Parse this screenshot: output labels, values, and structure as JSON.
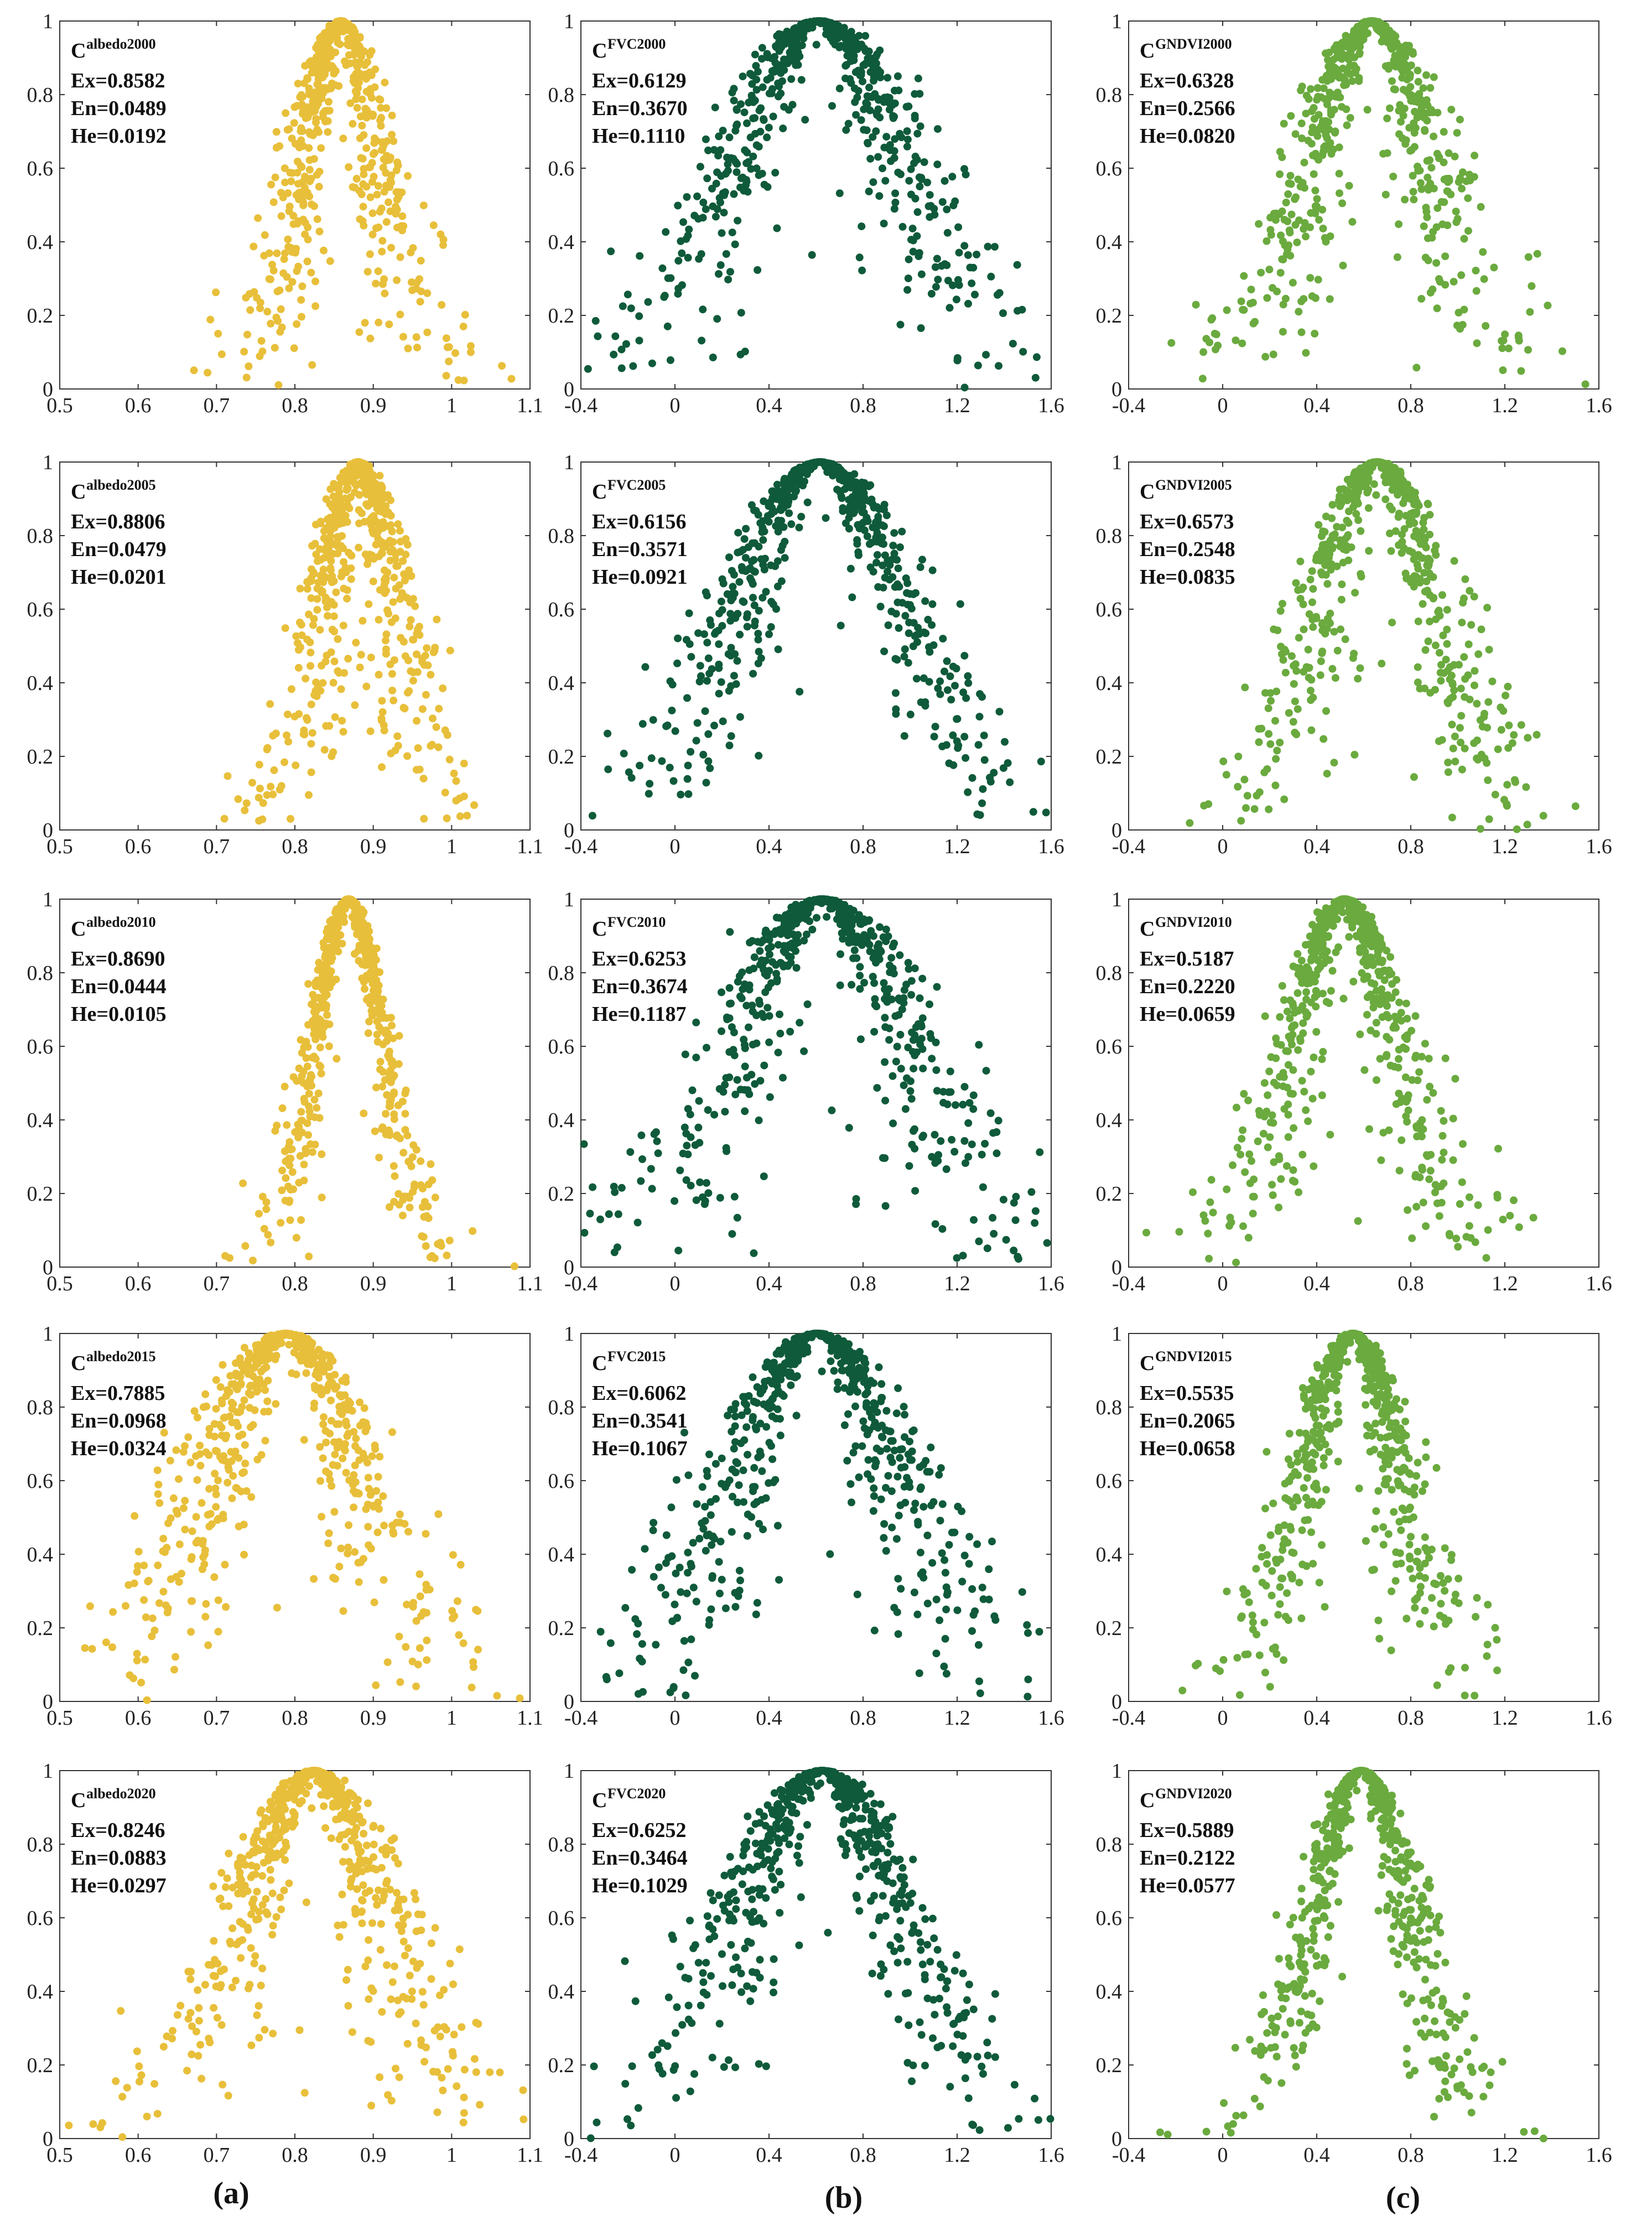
{
  "chart_data": [
    {
      "type": "scatter",
      "column": "a",
      "symbol": "C",
      "superscript": "albedo2000",
      "ex_label": "Ex=0.8582",
      "en_label": "En=0.0489",
      "he_label": "He=0.0192",
      "Ex": 0.8582,
      "En": 0.0489,
      "He": 0.0192,
      "xlim": [
        0.5,
        1.1
      ],
      "xticks": [
        "0.5",
        "0.6",
        "0.7",
        "0.8",
        "0.9",
        "1",
        "1.1"
      ],
      "ylim": [
        0,
        1
      ],
      "yticks": [
        "0",
        "0.2",
        "0.4",
        "0.6",
        "0.8",
        "1"
      ],
      "color": "#E8BF3A",
      "n_points": 650
    },
    {
      "type": "scatter",
      "column": "b",
      "symbol": "C",
      "superscript": "FVC2000",
      "ex_label": "Ex=0.6129",
      "en_label": "En=0.3670",
      "he_label": "He=0.1110",
      "Ex": 0.6129,
      "En": 0.367,
      "He": 0.111,
      "xlim": [
        -0.4,
        1.6
      ],
      "xticks": [
        "-0.4",
        "0",
        "0.4",
        "0.8",
        "1.2",
        "1.6"
      ],
      "ylim": [
        0,
        1
      ],
      "yticks": [
        "0",
        "0.2",
        "0.4",
        "0.6",
        "0.8",
        "1"
      ],
      "color": "#0F5A3A",
      "n_points": 650
    },
    {
      "type": "scatter",
      "column": "c",
      "symbol": "C",
      "superscript": "GNDVI2000",
      "ex_label": "Ex=0.6328",
      "en_label": "En=0.2566",
      "he_label": "He=0.0820",
      "Ex": 0.6328,
      "En": 0.2566,
      "He": 0.082,
      "xlim": [
        -0.4,
        1.6
      ],
      "xticks": [
        "-0.4",
        "0",
        "0.4",
        "0.8",
        "1.2",
        "1.6"
      ],
      "ylim": [
        0,
        1
      ],
      "yticks": [
        "0",
        "0.2",
        "0.4",
        "0.6",
        "0.8",
        "1"
      ],
      "color": "#6AAA3E",
      "n_points": 650
    },
    {
      "type": "scatter",
      "column": "a",
      "symbol": "C",
      "superscript": "albedo2005",
      "ex_label": "Ex=0.8806",
      "en_label": "En=0.0479",
      "he_label": "He=0.0201",
      "Ex": 0.8806,
      "En": 0.0479,
      "He": 0.0201,
      "xlim": [
        0.5,
        1.1
      ],
      "xticks": [
        "0.5",
        "0.6",
        "0.7",
        "0.8",
        "0.9",
        "1",
        "1.1"
      ],
      "ylim": [
        0,
        1
      ],
      "yticks": [
        "0",
        "0.2",
        "0.4",
        "0.6",
        "0.8",
        "1"
      ],
      "color": "#E8BF3A",
      "n_points": 650
    },
    {
      "type": "scatter",
      "column": "b",
      "symbol": "C",
      "superscript": "FVC2005",
      "ex_label": "Ex=0.6156",
      "en_label": "En=0.3571",
      "he_label": "He=0.0921",
      "Ex": 0.6156,
      "En": 0.3571,
      "He": 0.0921,
      "xlim": [
        -0.4,
        1.6
      ],
      "xticks": [
        "-0.4",
        "0",
        "0.4",
        "0.8",
        "1.2",
        "1.6"
      ],
      "ylim": [
        0,
        1
      ],
      "yticks": [
        "0",
        "0.2",
        "0.4",
        "0.6",
        "0.8",
        "1"
      ],
      "color": "#0F5A3A",
      "n_points": 650
    },
    {
      "type": "scatter",
      "column": "c",
      "symbol": "C",
      "superscript": "GNDVI2005",
      "ex_label": "Ex=0.6573",
      "en_label": "En=0.2548",
      "he_label": "He=0.0835",
      "Ex": 0.6573,
      "En": 0.2548,
      "He": 0.0835,
      "xlim": [
        -0.4,
        1.6
      ],
      "xticks": [
        "-0.4",
        "0",
        "0.4",
        "0.8",
        "1.2",
        "1.6"
      ],
      "ylim": [
        0,
        1
      ],
      "yticks": [
        "0",
        "0.2",
        "0.4",
        "0.6",
        "0.8",
        "1"
      ],
      "color": "#6AAA3E",
      "n_points": 650
    },
    {
      "type": "scatter",
      "column": "a",
      "symbol": "C",
      "superscript": "albedo2010",
      "ex_label": "Ex=0.8690",
      "en_label": "En=0.0444",
      "he_label": "He=0.0105",
      "Ex": 0.869,
      "En": 0.0444,
      "He": 0.0105,
      "xlim": [
        0.5,
        1.1
      ],
      "xticks": [
        "0.5",
        "0.6",
        "0.7",
        "0.8",
        "0.9",
        "1",
        "1.1"
      ],
      "ylim": [
        0,
        1
      ],
      "yticks": [
        "0",
        "0.2",
        "0.4",
        "0.6",
        "0.8",
        "1"
      ],
      "color": "#E8BF3A",
      "n_points": 650
    },
    {
      "type": "scatter",
      "column": "b",
      "symbol": "C",
      "superscript": "FVC2010",
      "ex_label": "Ex=0.6253",
      "en_label": "En=0.3674",
      "he_label": "He=0.1187",
      "Ex": 0.6253,
      "En": 0.3674,
      "He": 0.1187,
      "xlim": [
        -0.4,
        1.6
      ],
      "xticks": [
        "-0.4",
        "0",
        "0.4",
        "0.8",
        "1.2",
        "1.6"
      ],
      "ylim": [
        0,
        1
      ],
      "yticks": [
        "0",
        "0.2",
        "0.4",
        "0.6",
        "0.8",
        "1"
      ],
      "color": "#0F5A3A",
      "n_points": 650
    },
    {
      "type": "scatter",
      "column": "c",
      "symbol": "C",
      "superscript": "GNDVI2010",
      "ex_label": "Ex=0.5187",
      "en_label": "En=0.2220",
      "he_label": "He=0.0659",
      "Ex": 0.5187,
      "En": 0.222,
      "He": 0.0659,
      "xlim": [
        -0.4,
        1.6
      ],
      "xticks": [
        "-0.4",
        "0",
        "0.4",
        "0.8",
        "1.2",
        "1.6"
      ],
      "ylim": [
        0,
        1
      ],
      "yticks": [
        "0",
        "0.2",
        "0.4",
        "0.6",
        "0.8",
        "1"
      ],
      "color": "#6AAA3E",
      "n_points": 650
    },
    {
      "type": "scatter",
      "column": "a",
      "symbol": "C",
      "superscript": "albedo2015",
      "ex_label": "Ex=0.7885",
      "en_label": "En=0.0968",
      "he_label": "He=0.0324",
      "Ex": 0.7885,
      "En": 0.0968,
      "He": 0.0324,
      "xlim": [
        0.5,
        1.1
      ],
      "xticks": [
        "0.5",
        "0.6",
        "0.7",
        "0.8",
        "0.9",
        "1",
        "1.1"
      ],
      "ylim": [
        0,
        1
      ],
      "yticks": [
        "0",
        "0.2",
        "0.4",
        "0.6",
        "0.8",
        "1"
      ],
      "color": "#E8BF3A",
      "n_points": 650
    },
    {
      "type": "scatter",
      "column": "b",
      "symbol": "C",
      "superscript": "FVC2015",
      "ex_label": "Ex=0.6062",
      "en_label": "En=0.3541",
      "he_label": "He=0.1067",
      "Ex": 0.6062,
      "En": 0.3541,
      "He": 0.1067,
      "xlim": [
        -0.4,
        1.6
      ],
      "xticks": [
        "-0.4",
        "0",
        "0.4",
        "0.8",
        "1.2",
        "1.6"
      ],
      "ylim": [
        0,
        1
      ],
      "yticks": [
        "0",
        "0.2",
        "0.4",
        "0.6",
        "0.8",
        "1"
      ],
      "color": "#0F5A3A",
      "n_points": 650
    },
    {
      "type": "scatter",
      "column": "c",
      "symbol": "C",
      "superscript": "GNDVI2015",
      "ex_label": "Ex=0.5535",
      "en_label": "En=0.2065",
      "he_label": "He=0.0658",
      "Ex": 0.5535,
      "En": 0.2065,
      "He": 0.0658,
      "xlim": [
        -0.4,
        1.6
      ],
      "xticks": [
        "-0.4",
        "0",
        "0.4",
        "0.8",
        "1.2",
        "1.6"
      ],
      "ylim": [
        0,
        1
      ],
      "yticks": [
        "0",
        "0.2",
        "0.4",
        "0.6",
        "0.8",
        "1"
      ],
      "color": "#6AAA3E",
      "n_points": 650
    },
    {
      "type": "scatter",
      "column": "a",
      "symbol": "C",
      "superscript": "albedo2020",
      "ex_label": "Ex=0.8246",
      "en_label": "En=0.0883",
      "he_label": "He=0.0297",
      "Ex": 0.8246,
      "En": 0.0883,
      "He": 0.0297,
      "xlim": [
        0.5,
        1.1
      ],
      "xticks": [
        "0.5",
        "0.6",
        "0.7",
        "0.8",
        "0.9",
        "1",
        "1.1"
      ],
      "ylim": [
        0,
        1
      ],
      "yticks": [
        "0",
        "0.2",
        "0.4",
        "0.6",
        "0.8",
        "1"
      ],
      "color": "#E8BF3A",
      "n_points": 650
    },
    {
      "type": "scatter",
      "column": "b",
      "symbol": "C",
      "superscript": "FVC2020",
      "ex_label": "Ex=0.6252",
      "en_label": "En=0.3464",
      "he_label": "He=0.1029",
      "Ex": 0.6252,
      "En": 0.3464,
      "He": 0.1029,
      "xlim": [
        -0.4,
        1.6
      ],
      "xticks": [
        "-0.4",
        "0",
        "0.4",
        "0.8",
        "1.2",
        "1.6"
      ],
      "ylim": [
        0,
        1
      ],
      "yticks": [
        "0",
        "0.2",
        "0.4",
        "0.6",
        "0.8",
        "1"
      ],
      "color": "#0F5A3A",
      "n_points": 650
    },
    {
      "type": "scatter",
      "column": "c",
      "symbol": "C",
      "superscript": "GNDVI2020",
      "ex_label": "Ex=0.5889",
      "en_label": "En=0.2122",
      "he_label": "He=0.0577",
      "Ex": 0.5889,
      "En": 0.2122,
      "He": 0.0577,
      "xlim": [
        -0.4,
        1.6
      ],
      "xticks": [
        "-0.4",
        "0",
        "0.4",
        "0.8",
        "1.2",
        "1.6"
      ],
      "ylim": [
        0,
        1
      ],
      "yticks": [
        "0",
        "0.2",
        "0.4",
        "0.6",
        "0.8",
        "1"
      ],
      "color": "#6AAA3E",
      "n_points": 650
    }
  ],
  "panel_labels": [
    "(a)",
    "(b)",
    "(c)"
  ]
}
